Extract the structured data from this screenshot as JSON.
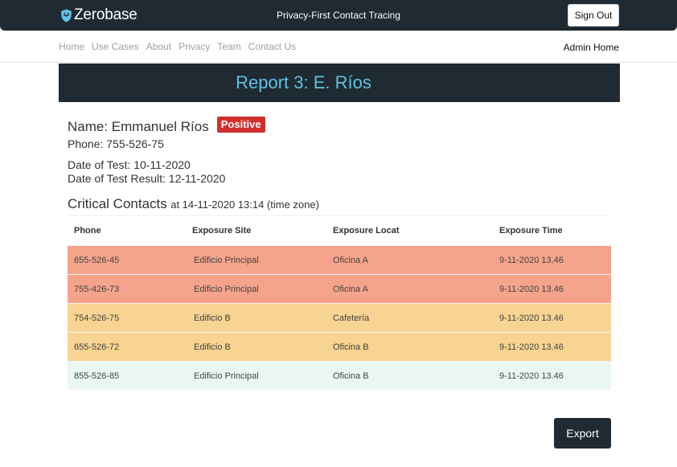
{
  "header": {
    "brand": "Zerobase",
    "tagline": "Privacy-First Contact Tracing",
    "signout_label": "Sign Out"
  },
  "nav": {
    "links": [
      "Home",
      "Use Cases",
      "About",
      "Privacy",
      "Team",
      "Contact Us"
    ],
    "admin_home": "Admin Home"
  },
  "report": {
    "title": "Report 3: E. Ríos",
    "name": "Name: Emmanuel Ríos",
    "status_badge": "Positive",
    "phone": "Phone: 755-526-75",
    "date_of_test": "Date of Test: 10-11-2020",
    "date_of_result": "Date of Test Result: 12-11-2020",
    "critical_heading": "Critical Contacts",
    "critical_at": "at 14-11-2020 13:14 (time zone)"
  },
  "table": {
    "columns": [
      "Phone",
      "Exposure Site",
      "Exposure Locat",
      "Exposure Time"
    ],
    "rows": [
      {
        "phone": "655-526-45",
        "site": "Edificio Principal",
        "location": "Oficina A",
        "time": "9-11-2020 13.46",
        "color": "#f5a38b"
      },
      {
        "phone": "755-426-73",
        "site": "Edificio Principal",
        "location": "Oficina A",
        "time": "9-11-2020 13.46",
        "color": "#f5a38b"
      },
      {
        "phone": "754-526-75",
        "site": "Edificio B",
        "location": "Cafetería",
        "time": "9-11-2020 13.46",
        "color": "#f7d491"
      },
      {
        "phone": "655-526-72",
        "site": "Edificio B",
        "location": "Oficina B",
        "time": "9-11-2020 13.46",
        "color": "#f7d491"
      },
      {
        "phone": "855-526-85",
        "site": "Edificio Principal",
        "location": "Oficina B",
        "time": "9-11-2020 13.46",
        "color": "#eaf7f0"
      }
    ]
  },
  "actions": {
    "export_label": "Export"
  },
  "colors": {
    "dark": "#1f2a32",
    "accent": "#5ec3e6",
    "badge": "#d02e2e"
  }
}
